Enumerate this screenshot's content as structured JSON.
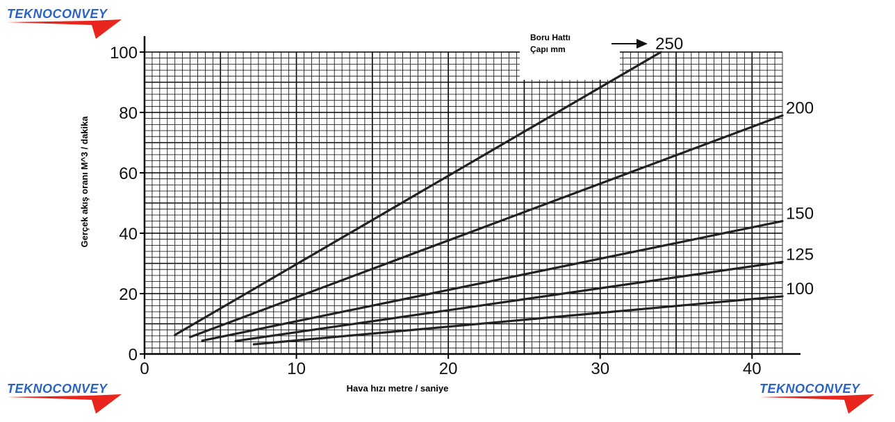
{
  "logos": {
    "brand": "TEKNOCONVEY",
    "accent_blue": "#2a63c8",
    "accent_red": "#e8261d"
  },
  "chart_data": {
    "type": "line",
    "title": "",
    "xlabel": "Hava hızı metre / saniye",
    "ylabel": "Gerçek akış oranı M^3 / dakika",
    "xlim": [
      0,
      42
    ],
    "ylim": [
      0,
      100
    ],
    "x_ticks": [
      0,
      10,
      20,
      30,
      40
    ],
    "y_ticks": [
      0,
      20,
      40,
      60,
      80,
      100
    ],
    "grid": true,
    "legend_title_line1": "Boru Hattı",
    "legend_title_line2": "Çapı mm",
    "series": [
      {
        "name": "250",
        "x": [
          2,
          34
        ],
        "y": [
          6.3,
          100
        ]
      },
      {
        "name": "200",
        "x": [
          3,
          42
        ],
        "y": [
          5.6,
          79
        ]
      },
      {
        "name": "150",
        "x": [
          3.8,
          42
        ],
        "y": [
          4.4,
          44
        ]
      },
      {
        "name": "125",
        "x": [
          6,
          42
        ],
        "y": [
          4.3,
          30.5
        ]
      },
      {
        "name": "100",
        "x": [
          7.2,
          42
        ],
        "y": [
          3.2,
          19.1
        ]
      }
    ]
  }
}
